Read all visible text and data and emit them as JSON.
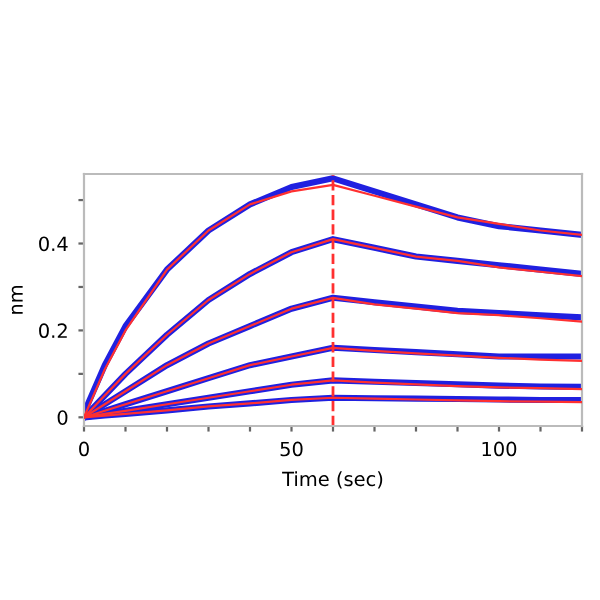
{
  "chart_data": {
    "type": "line",
    "xlabel": "Time (sec)",
    "ylabel": "nm",
    "x": [
      0,
      5,
      10,
      20,
      30,
      40,
      50,
      60,
      70,
      80,
      90,
      100,
      110,
      120
    ],
    "series": [
      {
        "color": "#2020e0",
        "values": [
          0.01,
          0.12,
          0.21,
          0.34,
          0.43,
          0.49,
          0.53,
          0.55,
          0.52,
          0.49,
          0.46,
          0.44,
          0.43,
          0.42
        ]
      },
      {
        "color": "#ff3030",
        "values": [
          0,
          0.11,
          0.2,
          0.34,
          0.43,
          0.49,
          0.52,
          0.535,
          0.51,
          0.485,
          0.46,
          0.445,
          0.43,
          0.42
        ]
      },
      {
        "color": "#2020e0",
        "values": [
          0,
          0.05,
          0.1,
          0.19,
          0.27,
          0.33,
          0.38,
          0.41,
          0.39,
          0.37,
          0.36,
          0.35,
          0.34,
          0.33
        ]
      },
      {
        "color": "#ff3030",
        "values": [
          0,
          0.05,
          0.1,
          0.19,
          0.27,
          0.33,
          0.38,
          0.41,
          0.39,
          0.37,
          0.36,
          0.345,
          0.335,
          0.325
        ]
      },
      {
        "color": "#2020e0",
        "values": [
          0,
          0.03,
          0.06,
          0.12,
          0.17,
          0.21,
          0.25,
          0.275,
          0.265,
          0.255,
          0.245,
          0.24,
          0.235,
          0.23
        ]
      },
      {
        "color": "#ff3030",
        "values": [
          0,
          0.03,
          0.06,
          0.12,
          0.17,
          0.21,
          0.25,
          0.275,
          0.26,
          0.25,
          0.24,
          0.235,
          0.228,
          0.22
        ]
      },
      {
        "color": "#2020e0",
        "values": [
          0,
          0.015,
          0.03,
          0.06,
          0.09,
          0.12,
          0.14,
          0.16,
          0.155,
          0.15,
          0.145,
          0.14,
          0.14,
          0.14
        ]
      },
      {
        "color": "#ff3030",
        "values": [
          0,
          0.015,
          0.03,
          0.06,
          0.09,
          0.12,
          0.14,
          0.16,
          0.153,
          0.147,
          0.142,
          0.137,
          0.133,
          0.13
        ]
      },
      {
        "color": "#2020e0",
        "values": [
          0,
          0.008,
          0.015,
          0.03,
          0.045,
          0.06,
          0.075,
          0.085,
          0.082,
          0.079,
          0.076,
          0.073,
          0.071,
          0.07
        ]
      },
      {
        "color": "#ff3030",
        "values": [
          0,
          0.008,
          0.015,
          0.03,
          0.045,
          0.06,
          0.075,
          0.085,
          0.08,
          0.076,
          0.072,
          0.069,
          0.067,
          0.065
        ]
      },
      {
        "color": "#2020e0",
        "values": [
          0,
          0.004,
          0.008,
          0.016,
          0.025,
          0.032,
          0.04,
          0.045,
          0.044,
          0.043,
          0.042,
          0.041,
          0.04,
          0.04
        ]
      },
      {
        "color": "#ff3030",
        "values": [
          0,
          0.004,
          0.008,
          0.016,
          0.025,
          0.032,
          0.04,
          0.045,
          0.043,
          0.041,
          0.039,
          0.037,
          0.036,
          0.035
        ]
      }
    ],
    "xlim": [
      0,
      120
    ],
    "ylim": [
      -0.02,
      0.56
    ],
    "xticks": [
      0,
      {
        "value": 10,
        "label": null
      },
      {
        "value": 20,
        "label": null
      },
      {
        "value": 30,
        "label": null
      },
      {
        "value": 40,
        "label": null
      },
      50,
      {
        "value": 60,
        "label": null
      },
      {
        "value": 70,
        "label": null
      },
      {
        "value": 80,
        "label": null
      },
      {
        "value": 90,
        "label": null
      },
      100,
      {
        "value": 110,
        "label": null
      },
      {
        "value": 120,
        "label": null
      }
    ],
    "yticks": [
      0,
      {
        "value": 0.1,
        "label": null
      },
      0.2,
      {
        "value": 0.3,
        "label": null
      },
      0.4,
      {
        "value": 0.5,
        "label": null
      }
    ],
    "ref_lines": [
      {
        "axis": "x",
        "value": 60,
        "label": null,
        "color": "#ff3030",
        "line_style": "dashed"
      }
    ],
    "grid": false,
    "legend": false
  }
}
